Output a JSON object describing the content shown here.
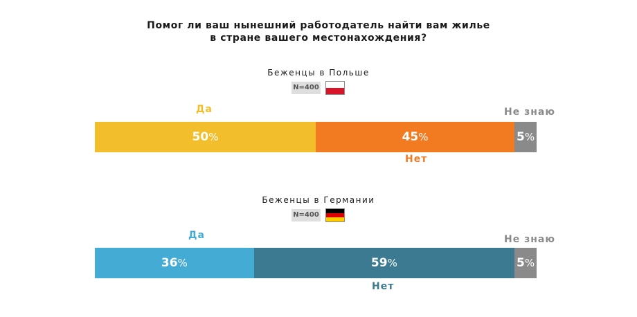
{
  "title_line1": "Помог ли ваш нынешний работодатель найти вам жилье",
  "title_line2": "в стране вашего местонахождения?",
  "percent_sign": "%",
  "chart_data": [
    {
      "type": "bar",
      "stacked": true,
      "orientation": "horizontal",
      "group_title": "Беженцы в Польше",
      "n_label": "N=400",
      "flag": "poland-flag",
      "categories": [
        "Да",
        "Нет",
        "Не знаю"
      ],
      "values": [
        50,
        45,
        5
      ],
      "colors": [
        "#f2be2b",
        "#f27b22",
        "#8a8a8a"
      ],
      "label_colors": [
        "#f2be2b",
        "#f27b22",
        "#8a8a8a"
      ]
    },
    {
      "type": "bar",
      "stacked": true,
      "orientation": "horizontal",
      "group_title": "Беженцы в Германии",
      "n_label": "N=400",
      "flag": "germany-flag",
      "categories": [
        "Да",
        "Нет",
        "Не знаю"
      ],
      "values": [
        36,
        59,
        5
      ],
      "colors": [
        "#44acd4",
        "#3c7a92",
        "#8a8a8a"
      ],
      "label_colors": [
        "#44acd4",
        "#3c7a92",
        "#8a8a8a"
      ]
    }
  ]
}
